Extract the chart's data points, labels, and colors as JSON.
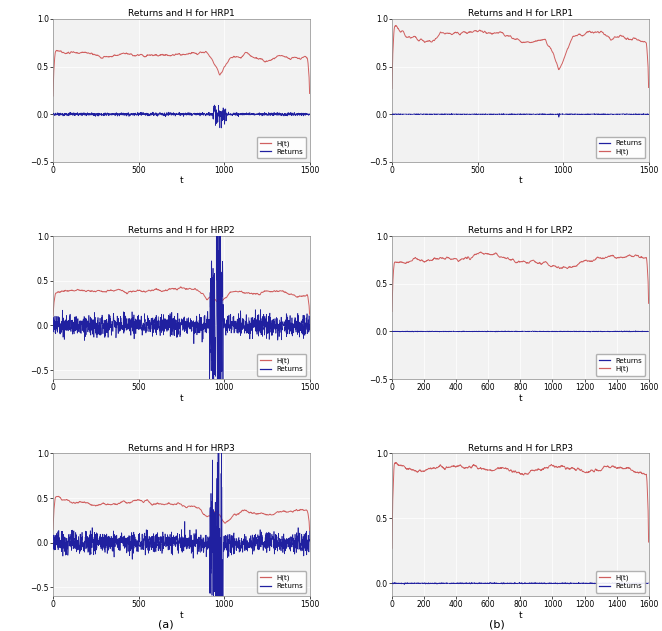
{
  "titles": [
    "Returns and H for HRP1",
    "Returns and H for LRP1",
    "Returns and H for HRP2",
    "Returns and H for LRP2",
    "Returns and H for HRP3",
    "Returns and H for LRP3"
  ],
  "col_label_a": "(a)",
  "col_label_b": "(b)",
  "xlabel": "t",
  "h_color": "#d06060",
  "r_color": "#2020a0",
  "figsize": [
    6.62,
    6.31
  ],
  "dpi": 100,
  "bg_color": "#f0f0f0"
}
